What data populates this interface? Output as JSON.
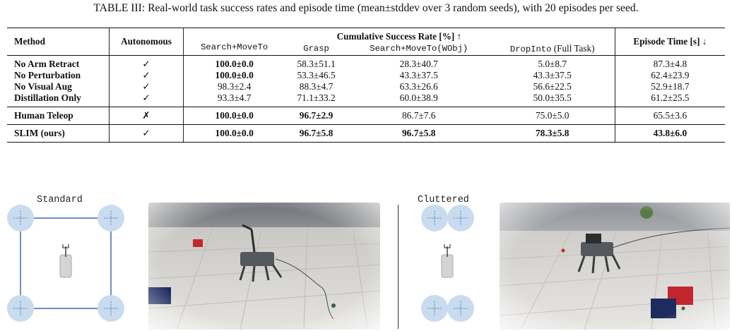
{
  "caption": "TABLE III: Real-world task success rates and episode time (mean±stddev over 3 random seeds), with 20 episodes per seed.",
  "table": {
    "headers": {
      "method": "Method",
      "autonomous": "Autonomous",
      "success_group": "Cumulative Success Rate [%] ↑",
      "episode_time": "Episode Time [s] ↓",
      "sub": [
        "Search+MoveTo",
        "Grasp",
        "Search+MoveTo(WObj)",
        "DropInto"
      ],
      "sub_dropinto_suffix": " (Full Task)"
    },
    "rows": [
      {
        "method": "No Arm Retract",
        "autonomous": "✓",
        "cells": [
          "100.0±0.0",
          "58.3±51.1",
          "28.3±40.7",
          "5.0±8.7"
        ],
        "time": "87.3±4.8",
        "bold": [
          true,
          false,
          false,
          false
        ],
        "time_bold": false
      },
      {
        "method": "No Perturbation",
        "autonomous": "✓",
        "cells": [
          "100.0±0.0",
          "53.3±46.5",
          "43.3±37.5",
          "43.3±37.5"
        ],
        "time": "62.4±23.9",
        "bold": [
          true,
          false,
          false,
          false
        ],
        "time_bold": false
      },
      {
        "method": "No Visual Aug",
        "autonomous": "✓",
        "cells": [
          "98.3±2.4",
          "88.3±4.7",
          "63.3±26.6",
          "56.6±22.5"
        ],
        "time": "52.9±18.7",
        "bold": [
          false,
          false,
          false,
          false
        ],
        "time_bold": false
      },
      {
        "method": "Distillation Only",
        "autonomous": "✓",
        "cells": [
          "93.3±4.7",
          "71.1±33.2",
          "60.0±38.9",
          "50.0±35.5"
        ],
        "time": "61.2±25.5",
        "bold": [
          false,
          false,
          false,
          false
        ],
        "time_bold": false
      },
      {
        "method": "Human Teleop",
        "autonomous": "✗",
        "cells": [
          "100.0±0.0",
          "96.7±2.9",
          "86.7±7.6",
          "75.0±5.0"
        ],
        "time": "65.5±3.6",
        "bold": [
          true,
          true,
          false,
          false
        ],
        "time_bold": false
      },
      {
        "method": "SLIM (ours)",
        "autonomous": "✓",
        "cells": [
          "100.0±0.0",
          "96.7±5.8",
          "96.7±5.8",
          "78.3±5.8"
        ],
        "time": "43.8±6.0",
        "bold": [
          true,
          true,
          true,
          true
        ],
        "time_bold": true
      }
    ]
  },
  "panels": {
    "standard_label": "Standard",
    "cluttered_label": "Cluttered"
  },
  "colors": {
    "circle_fill": "#c9dbef",
    "circle_cross": "#5b7fb5",
    "square_line": "#2d4f95",
    "robot_fill": "#d4d4d4",
    "red_bin": "#c3262d",
    "blue_bin": "#1d2c5e"
  }
}
